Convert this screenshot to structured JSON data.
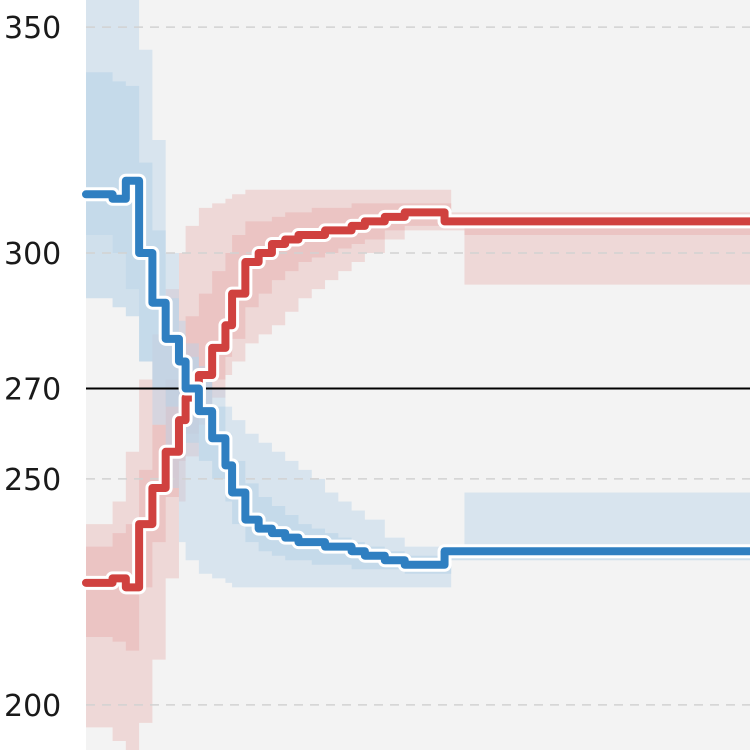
{
  "chart_data": {
    "type": "line",
    "title": "",
    "xlabel": "",
    "ylabel": "",
    "ylim": [
      190,
      356
    ],
    "xlim": [
      0,
      100
    ],
    "y_ticks": [
      {
        "value": 350,
        "label": "350"
      },
      {
        "value": 300,
        "label": "300"
      },
      {
        "value": 270,
        "label": "270"
      },
      {
        "value": 250,
        "label": "250"
      },
      {
        "value": 200,
        "label": "200"
      }
    ],
    "reference_line": 270,
    "grid": "horizontal dashed",
    "legend": "none",
    "colors": {
      "red": "#d0413f",
      "blue": "#2f7fc1",
      "red_band": "#e9b7b6",
      "blue_band": "#b9d3e8",
      "panel": "#f3f3f3",
      "grid": "#d2d2d2",
      "reference": "#000000"
    },
    "series": [
      {
        "color": "red",
        "x": [
          0,
          4,
          6,
          8,
          10,
          12,
          14,
          15,
          17,
          19,
          21,
          22,
          24,
          26,
          28,
          30,
          32,
          34,
          36,
          38,
          40,
          42,
          45,
          48,
          50,
          52,
          54,
          55,
          56,
          57,
          58,
          60,
          63,
          70,
          80,
          90,
          100
        ],
        "y": [
          227,
          228,
          226,
          240,
          248,
          256,
          263,
          268,
          273,
          279,
          284,
          291,
          298,
          300,
          302,
          303,
          304,
          304,
          305,
          305,
          306,
          307,
          308,
          309,
          309,
          309,
          307,
          307,
          307,
          307,
          307,
          307,
          307,
          307,
          307,
          307,
          307
        ],
        "band_outer_upper": [
          240,
          245,
          256,
          272,
          282,
          292,
          300,
          306,
          310,
          311,
          312,
          313,
          314,
          314,
          314,
          314,
          314,
          314,
          314,
          314,
          314,
          314,
          314,
          314,
          314,
          314,
          314,
          309,
          309,
          309,
          309,
          309,
          309,
          309,
          309,
          309,
          309
        ],
        "band_outer_lower": [
          195,
          192,
          190,
          196,
          210,
          228,
          245,
          255,
          262,
          268,
          273,
          276,
          280,
          282,
          284,
          287,
          290,
          292,
          294,
          296,
          298,
          300,
          303,
          305,
          305,
          305,
          305,
          305,
          305,
          293,
          293,
          293,
          293,
          293,
          293,
          293,
          293
        ],
        "band_inner_upper": [
          235,
          238,
          240,
          252,
          262,
          272,
          281,
          286,
          291,
          296,
          300,
          304,
          307,
          307,
          308,
          309,
          309,
          310,
          310,
          310,
          311,
          311,
          311,
          311,
          311,
          311,
          311,
          308,
          308,
          308,
          308,
          308,
          308,
          308,
          308,
          308,
          308
        ],
        "band_inner_lower": [
          215,
          214,
          212,
          226,
          236,
          246,
          254,
          260,
          266,
          272,
          277,
          281,
          288,
          291,
          294,
          296,
          298,
          299,
          300,
          301,
          302,
          303,
          305,
          306,
          306,
          306,
          306,
          306,
          306,
          304,
          304,
          304,
          304,
          304,
          304,
          304,
          304
        ]
      },
      {
        "color": "blue",
        "x": [
          0,
          4,
          6,
          8,
          10,
          12,
          14,
          15,
          17,
          19,
          21,
          22,
          24,
          26,
          28,
          30,
          32,
          34,
          36,
          38,
          40,
          42,
          45,
          48,
          50,
          52,
          54,
          55,
          56,
          57,
          58,
          60,
          63,
          70,
          80,
          90,
          100
        ],
        "y": [
          313,
          312,
          316,
          300,
          289,
          281,
          276,
          270,
          265,
          259,
          253,
          247,
          241,
          239,
          238,
          237,
          236,
          236,
          235,
          235,
          234,
          233,
          232,
          231,
          231,
          231,
          234,
          234,
          234,
          234,
          234,
          234,
          234,
          234,
          234,
          234,
          234
        ],
        "band_outer_upper": [
          356,
          356,
          356,
          345,
          325,
          300,
          285,
          280,
          275,
          270,
          266,
          263,
          260,
          258,
          256,
          254,
          252,
          250,
          247,
          245,
          243,
          241,
          237,
          235,
          235,
          235,
          235,
          235,
          235,
          247,
          247,
          247,
          247,
          247,
          247,
          247,
          247
        ],
        "band_outer_lower": [
          304,
          300,
          292,
          276,
          262,
          248,
          236,
          232,
          229,
          228,
          227,
          226,
          226,
          226,
          226,
          226,
          226,
          226,
          226,
          226,
          226,
          226,
          226,
          226,
          226,
          226,
          226,
          233,
          233,
          233,
          233,
          233,
          233,
          233,
          233,
          233,
          233
        ],
        "band_inner_upper": [
          340,
          338,
          337,
          320,
          305,
          290,
          282,
          277,
          272,
          266,
          260,
          254,
          249,
          246,
          244,
          242,
          240,
          239,
          238,
          237,
          236,
          235,
          234,
          233,
          233,
          233,
          233,
          235,
          235,
          235,
          235,
          235,
          235,
          235,
          235,
          235,
          235
        ],
        "band_inner_lower": [
          290,
          288,
          286,
          276,
          270,
          266,
          262,
          258,
          254,
          250,
          245,
          240,
          236,
          234,
          233,
          232,
          232,
          231,
          231,
          231,
          230,
          230,
          230,
          229,
          229,
          229,
          229,
          232,
          232,
          232,
          232,
          232,
          232,
          232,
          232,
          232,
          232
        ]
      }
    ]
  }
}
